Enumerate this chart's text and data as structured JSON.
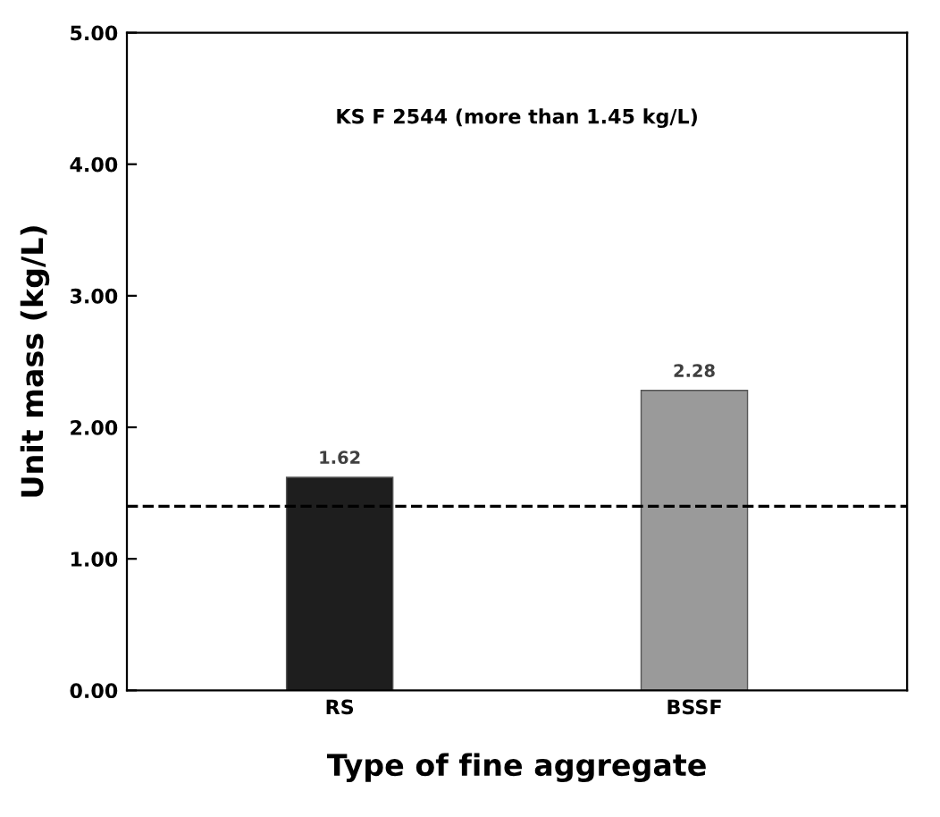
{
  "chart_data": {
    "type": "bar",
    "xlabel": "Type of fine aggregate",
    "ylabel": "Unit mass (kg/L)",
    "categories": [
      "RS",
      "BSSF"
    ],
    "series": [
      {
        "colors": [
          "#1e1e1e",
          "#9a9a9a"
        ],
        "values": [
          1.62,
          2.28
        ]
      }
    ],
    "data_labels": true,
    "ylim": [
      0,
      5
    ],
    "yticks": [
      {
        "value": 0,
        "label": "0.00"
      },
      {
        "value": 1,
        "label": "1.00"
      },
      {
        "value": 2,
        "label": "2.00"
      },
      {
        "value": 3,
        "label": "3.00"
      },
      {
        "value": 4,
        "label": "4.00"
      },
      {
        "value": 5,
        "label": "5.00"
      }
    ],
    "ref_lines": [
      {
        "axis": "y",
        "value": 1.4,
        "color": "#000000",
        "line_style": "dashed"
      }
    ],
    "annotations": [
      "KS F 2544 (more than 1.45 kg/L)"
    ],
    "grid": false,
    "legend": false
  }
}
